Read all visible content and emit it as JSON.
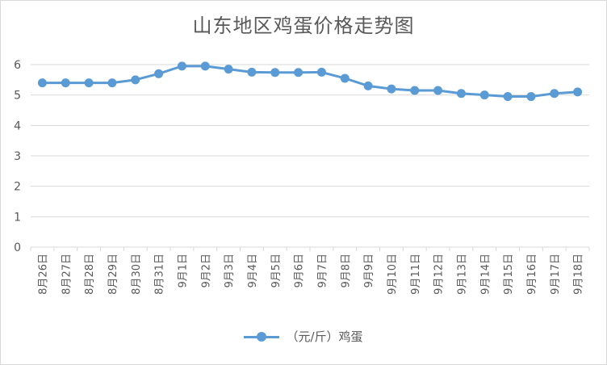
{
  "colors": {
    "series": "#5b9bd5",
    "grid": "#d9d9d9",
    "text": "#595959"
  },
  "chart_data": {
    "type": "line",
    "title": "山东地区鸡蛋价格走势图",
    "categories": [
      "8月26日",
      "8月27日",
      "8月28日",
      "8月29日",
      "8月30日",
      "8月31日",
      "9月1日",
      "9月2日",
      "9月3日",
      "9月4日",
      "9月5日",
      "9月6日",
      "9月7日",
      "9月8日",
      "9月9日",
      "9月10日",
      "9月11日",
      "9月12日",
      "9月13日",
      "9月14日",
      "9月15日",
      "9月16日",
      "9月17日",
      "9月18日"
    ],
    "series": [
      {
        "name": "（元/斤）鸡蛋",
        "values": [
          5.4,
          5.4,
          5.4,
          5.4,
          5.5,
          5.7,
          5.95,
          5.95,
          5.85,
          5.75,
          5.74,
          5.74,
          5.75,
          5.55,
          5.3,
          5.2,
          5.15,
          5.15,
          5.05,
          5.0,
          4.95,
          4.95,
          5.05,
          5.1
        ]
      }
    ],
    "ylim": [
      0,
      6
    ],
    "yticks": [
      0,
      1,
      2,
      3,
      4,
      5,
      6
    ],
    "grid": true,
    "legend_position": "bottom"
  }
}
